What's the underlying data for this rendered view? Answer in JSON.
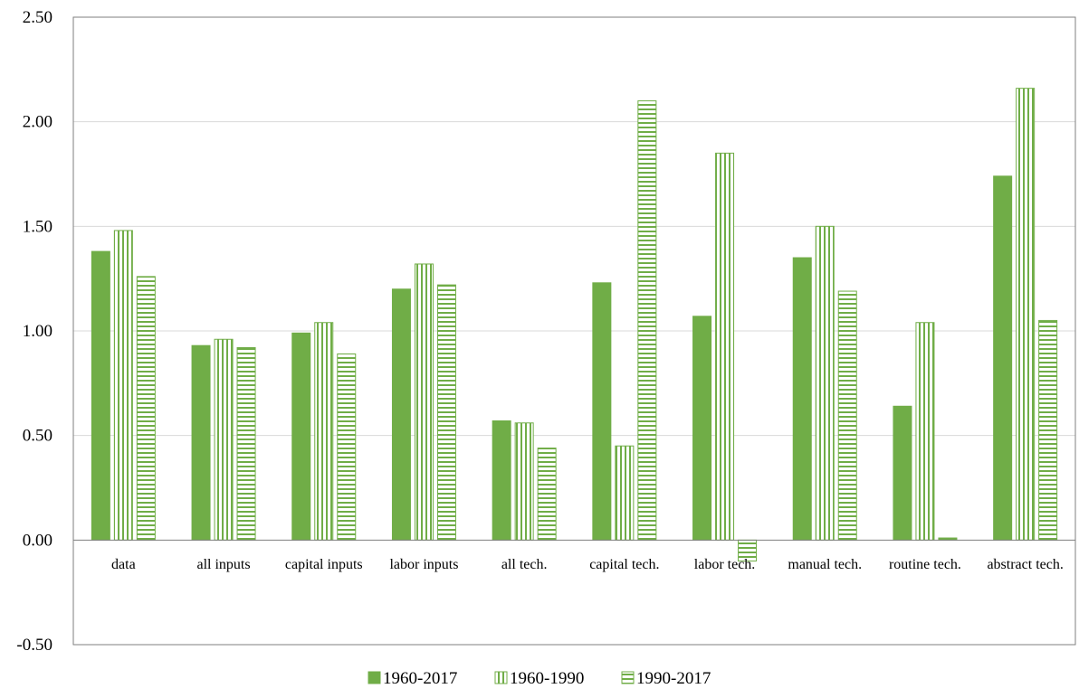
{
  "chart_data": {
    "type": "bar",
    "title": "",
    "xlabel": "",
    "ylabel": "",
    "ylim": [
      -0.5,
      2.5
    ],
    "yticks": [
      "-0.50",
      "0.00",
      "0.50",
      "1.00",
      "1.50",
      "2.00",
      "2.50"
    ],
    "grid": "horizontal",
    "legend_position": "bottom",
    "categories": [
      "data",
      "all inputs",
      "capital  inputs",
      "labor inputs",
      "all tech.",
      "capital  tech.",
      "labor tech.",
      "manual tech.",
      "routine tech.",
      "abstract tech."
    ],
    "series": [
      {
        "name": "1960-2017",
        "pattern": "solid",
        "values": [
          1.38,
          0.93,
          0.99,
          1.2,
          0.57,
          1.23,
          1.07,
          1.35,
          0.64,
          1.74
        ]
      },
      {
        "name": "1960-1990",
        "pattern": "vertical-lines",
        "values": [
          1.48,
          0.96,
          1.04,
          1.32,
          0.56,
          0.45,
          1.85,
          1.5,
          1.04,
          2.16
        ]
      },
      {
        "name": "1990-2017",
        "pattern": "horizontal-lines",
        "values": [
          1.26,
          0.92,
          0.89,
          1.22,
          0.44,
          2.1,
          -0.1,
          1.19,
          0.01,
          1.05
        ]
      }
    ],
    "colors": {
      "bar": "#70ad47",
      "grid": "#d9d9d9",
      "axis": "#7f7f7f"
    }
  }
}
